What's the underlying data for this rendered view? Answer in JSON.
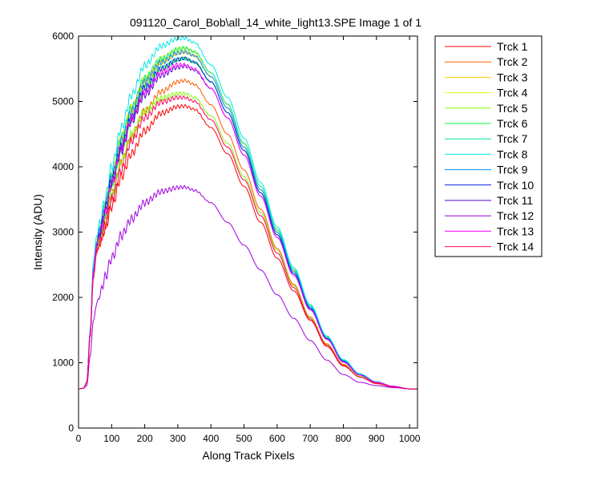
{
  "window": {
    "background": "#ffffff"
  },
  "chart_data": {
    "type": "line",
    "title": "091120_Carol_Bob\\all_14_white_light13.SPE  Image 1 of 1",
    "xlabel": "Along Track Pixels",
    "ylabel": "Intensity (ADU)",
    "xlim": [
      0,
      1024
    ],
    "ylim": [
      0,
      6000
    ],
    "xticks": [
      0,
      100,
      200,
      300,
      400,
      500,
      600,
      700,
      800,
      900,
      1000
    ],
    "yticks": [
      0,
      1000,
      2000,
      3000,
      4000,
      5000,
      6000
    ],
    "grid": false,
    "legend_position": "outside-right",
    "x": [
      0,
      15,
      25,
      35,
      45,
      55,
      65,
      80,
      100,
      130,
      160,
      200,
      250,
      300,
      320,
      350,
      400,
      450,
      500,
      550,
      600,
      650,
      700,
      750,
      800,
      850,
      900,
      950,
      1000,
      1024
    ],
    "series": [
      {
        "name": "Trck 1",
        "color": "#ff0000",
        "values": [
          600,
          610,
          700,
          1400,
          2300,
          2700,
          2850,
          3050,
          3400,
          3850,
          4200,
          4550,
          4820,
          4920,
          4930,
          4880,
          4600,
          4200,
          3700,
          3150,
          2600,
          2100,
          1650,
          1250,
          950,
          780,
          680,
          630,
          600,
          600
        ]
      },
      {
        "name": "Trck 2",
        "color": "#ff5a00",
        "values": [
          600,
          610,
          700,
          1400,
          2350,
          2750,
          2900,
          3150,
          3550,
          4050,
          4450,
          4850,
          5150,
          5300,
          5320,
          5260,
          4950,
          4500,
          3950,
          3350,
          2750,
          2200,
          1700,
          1290,
          980,
          790,
          690,
          630,
          600,
          600
        ]
      },
      {
        "name": "Trck 3",
        "color": "#ffc400",
        "values": [
          600,
          610,
          700,
          1450,
          2450,
          2850,
          3050,
          3350,
          3800,
          4400,
          4850,
          5300,
          5600,
          5740,
          5760,
          5700,
          5380,
          4900,
          4300,
          3650,
          3000,
          2400,
          1850,
          1380,
          1030,
          820,
          700,
          640,
          600,
          600
        ]
      },
      {
        "name": "Trck 4",
        "color": "#d8ff00",
        "values": [
          600,
          610,
          700,
          1450,
          2450,
          2850,
          3050,
          3400,
          3850,
          4450,
          4900,
          5350,
          5650,
          5800,
          5820,
          5760,
          5440,
          4950,
          4350,
          3700,
          3030,
          2420,
          1870,
          1390,
          1040,
          820,
          700,
          640,
          600,
          600
        ]
      },
      {
        "name": "Trck 5",
        "color": "#80ff00",
        "values": [
          600,
          610,
          700,
          1400,
          2350,
          2750,
          2900,
          3150,
          3600,
          4100,
          4500,
          4850,
          5050,
          5120,
          5120,
          5060,
          4780,
          4360,
          3850,
          3300,
          2720,
          2180,
          1690,
          1280,
          970,
          790,
          690,
          630,
          600,
          600
        ]
      },
      {
        "name": "Trck 6",
        "color": "#00ff40",
        "values": [
          600,
          610,
          700,
          1450,
          2400,
          2800,
          3000,
          3300,
          3750,
          4300,
          4750,
          5200,
          5500,
          5640,
          5660,
          5600,
          5300,
          4830,
          4250,
          3600,
          2960,
          2370,
          1830,
          1370,
          1020,
          810,
          700,
          640,
          600,
          600
        ]
      },
      {
        "name": "Trck 7",
        "color": "#00e69a",
        "values": [
          600,
          610,
          700,
          1450,
          2450,
          2850,
          3050,
          3400,
          3850,
          4450,
          4900,
          5350,
          5650,
          5800,
          5820,
          5760,
          5440,
          4960,
          4360,
          3700,
          3040,
          2430,
          1870,
          1400,
          1040,
          820,
          700,
          640,
          600,
          600
        ]
      },
      {
        "name": "Trck 8",
        "color": "#00e6e6",
        "values": [
          600,
          610,
          700,
          1500,
          2550,
          2950,
          3150,
          3500,
          4000,
          4600,
          5100,
          5550,
          5850,
          5960,
          5970,
          5900,
          5560,
          5060,
          4440,
          3760,
          3080,
          2460,
          1890,
          1410,
          1050,
          830,
          710,
          640,
          600,
          600
        ]
      },
      {
        "name": "Trck 9",
        "color": "#0090ff",
        "values": [
          600,
          610,
          700,
          1450,
          2450,
          2850,
          3050,
          3400,
          3850,
          4400,
          4850,
          5300,
          5600,
          5740,
          5760,
          5700,
          5380,
          4900,
          4300,
          3650,
          3000,
          2400,
          1850,
          1380,
          1030,
          820,
          700,
          640,
          600,
          600
        ]
      },
      {
        "name": "Trck 10",
        "color": "#0020e0",
        "values": [
          600,
          610,
          700,
          1400,
          2400,
          2800,
          3000,
          3350,
          3800,
          4300,
          4750,
          5200,
          5500,
          5640,
          5660,
          5600,
          5300,
          4830,
          4250,
          3600,
          2960,
          2370,
          1830,
          1370,
          1020,
          810,
          700,
          640,
          600,
          600
        ]
      },
      {
        "name": "Trck 11",
        "color": "#5a00d0",
        "values": [
          600,
          610,
          700,
          1400,
          2400,
          2800,
          3000,
          3300,
          3750,
          4250,
          4700,
          5100,
          5400,
          5520,
          5540,
          5480,
          5200,
          4750,
          4180,
          3550,
          2920,
          2340,
          1810,
          1360,
          1010,
          810,
          700,
          640,
          600,
          600
        ]
      },
      {
        "name": "Trck 12",
        "color": "#a000e0",
        "values": [
          600,
          610,
          650,
          1100,
          1650,
          1900,
          2050,
          2300,
          2600,
          2950,
          3200,
          3450,
          3620,
          3680,
          3690,
          3640,
          3450,
          3150,
          2800,
          2420,
          2040,
          1680,
          1340,
          1040,
          820,
          700,
          650,
          620,
          600,
          600
        ]
      },
      {
        "name": "Trck 13",
        "color": "#ff00ff",
        "values": [
          600,
          610,
          700,
          1450,
          2400,
          2800,
          3000,
          3300,
          3750,
          4300,
          4750,
          5150,
          5450,
          5560,
          5560,
          5500,
          5200,
          4750,
          4180,
          3550,
          2920,
          2340,
          1810,
          1360,
          1010,
          810,
          700,
          640,
          600,
          600
        ]
      },
      {
        "name": "Trck 14",
        "color": "#ff0060",
        "values": [
          600,
          610,
          700,
          1400,
          2300,
          2700,
          2850,
          3100,
          3500,
          3950,
          4400,
          4750,
          4990,
          5060,
          5060,
          5000,
          4720,
          4300,
          3800,
          3250,
          2680,
          2150,
          1670,
          1270,
          960,
          780,
          690,
          630,
          600,
          600
        ]
      }
    ]
  }
}
